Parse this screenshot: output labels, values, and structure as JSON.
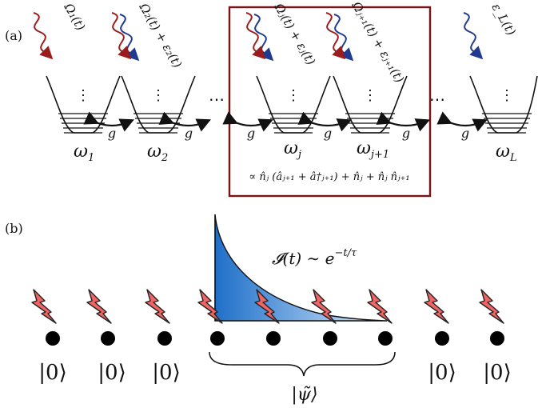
{
  "panel_a": {
    "label": "(a)",
    "sites": [
      {
        "freq_name": "ω",
        "freq_sub": "1",
        "drive": "Ω₁(t)",
        "drive_color": "#9b1c1c"
      },
      {
        "freq_name": "ω",
        "freq_sub": "2",
        "drive": "Ω₂(t) + ε₂(t)",
        "drive_color": "#9b1c1c",
        "drive2_color": "#1f3a8f"
      },
      {
        "freq_name": "ω",
        "freq_sub": "j",
        "drive": "Ωⱼ(t) + εⱼ(t)",
        "drive_color": "#9b1c1c",
        "drive2_color": "#1f3a8f"
      },
      {
        "freq_name": "ω",
        "freq_sub": "j+1",
        "drive": "Ωⱼ₊₁(t) + εⱼ₊₁(t)",
        "drive_color": "#9b1c1c",
        "drive2_color": "#1f3a8f"
      },
      {
        "freq_name": "ω",
        "freq_sub": "L",
        "drive": "ε_L(t)",
        "drive_color": "#1f3a8f"
      }
    ],
    "coupling": "g",
    "ellipsis": "⋯",
    "well_dots": "⋮",
    "box_formula": "∝ n̂ⱼ (âⱼ₊₁ + â†ⱼ₊₁) + n̂ⱼ + n̂ⱼ n̂ⱼ₊₁",
    "box_color": "#7a1414"
  },
  "panel_b": {
    "label": "(b)",
    "intensity_label": "𝓘(t) ∼ e",
    "intensity_exp": "−t/τ",
    "ket_zero": "|0⟩",
    "ket_psi": "|ψ̃⟩",
    "bolt_color": "#e84a4a",
    "fill_color": "#2f7fd1"
  }
}
